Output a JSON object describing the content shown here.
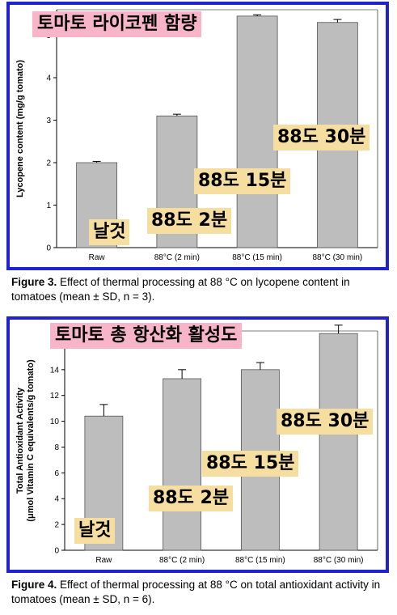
{
  "overlays": {
    "chart1_title": "토마토 라이코펜 함량",
    "chart2_title": "토마토 총 항산화 활성도",
    "raw": "날것",
    "c2": "88도 2분",
    "c15": "88도 15분",
    "c30": "88도 30분"
  },
  "captions": {
    "fig3_label": "Figure 3.",
    "fig3_text": "Effect of thermal processing at 88 °C on lycopene content in tomatoes (mean ± SD, n = 3).",
    "fig4_label": "Figure 4.",
    "fig4_text": "Effect of thermal processing at 88 °C on total antioxidant activity in tomatoes (mean ± SD, n = 6)."
  },
  "chart_data": [
    {
      "type": "bar",
      "categories": [
        "Raw",
        "88°C (2 min)",
        "88°C (15 min)",
        "88°C (30 min)"
      ],
      "values": [
        2.0,
        3.1,
        5.45,
        5.3
      ],
      "errors": [
        0.03,
        0.04,
        0.03,
        0.07
      ],
      "xlabel": "",
      "ylabel": "Lycopene content (mg/g tomato)",
      "ylim": [
        0,
        5.6
      ],
      "yticks": [
        0,
        1,
        2,
        3,
        4,
        5
      ],
      "bar_color": "#bdbdbd",
      "grid": false
    },
    {
      "type": "bar",
      "categories": [
        "Raw",
        "88°C (2 min)",
        "88°C (15 min)",
        "88°C (30 min)"
      ],
      "values": [
        10.4,
        13.3,
        14.0,
        16.8
      ],
      "errors": [
        0.9,
        0.7,
        0.55,
        0.65
      ],
      "xlabel": "",
      "ylabel": "Total Antioxidant Activity",
      "ylabel2": "(μmol Vitamin C equivalents/g tomato)",
      "ylim": [
        0,
        17
      ],
      "yticks": [
        0,
        2,
        4,
        6,
        8,
        10,
        12,
        14,
        16
      ],
      "bar_color": "#bdbdbd",
      "grid": false
    }
  ]
}
